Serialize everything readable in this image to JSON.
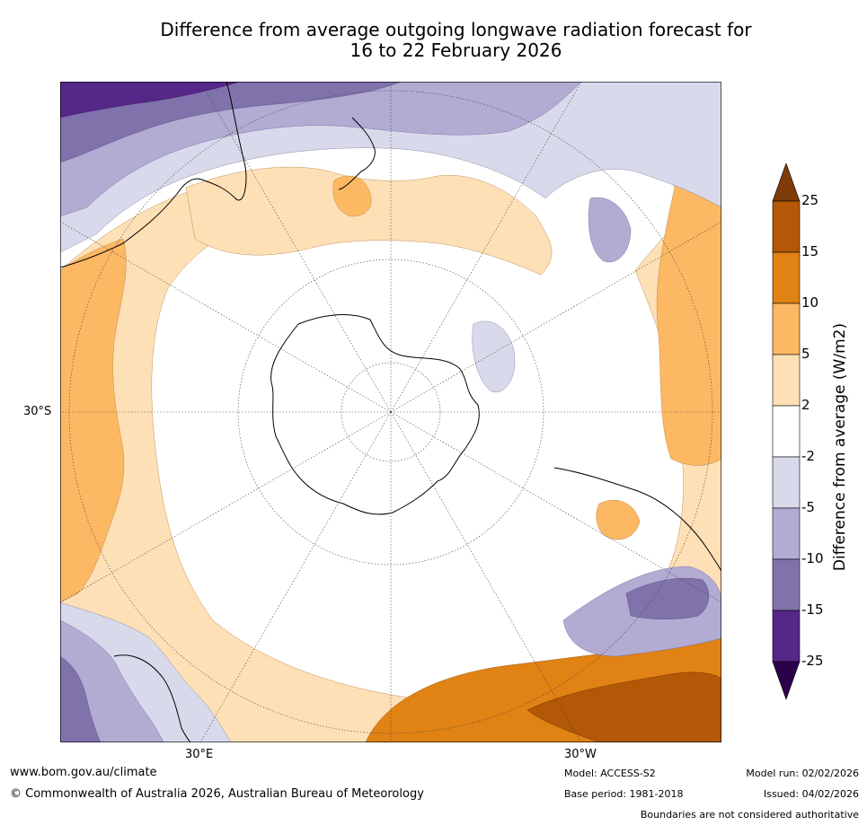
{
  "title_line1": "Difference from average outgoing longwave radiation forecast for",
  "title_line2": "16 to 22 February 2026",
  "map": {
    "lat_label": "30°S",
    "lon_label_left": "30°E",
    "lon_label_right": "30°W"
  },
  "colorbar": {
    "title": "Difference from average (W/m2)",
    "ticks": [
      "25",
      "15",
      "10",
      "5",
      "2",
      "-2",
      "-5",
      "-10",
      "-15",
      "-25"
    ],
    "colors": [
      "#7f3b08",
      "#b35806",
      "#e08214",
      "#fdb863",
      "#fee0b6",
      "#ffffff",
      "#d8daeb",
      "#b2abd2",
      "#8073ac",
      "#542788",
      "#2d004b"
    ]
  },
  "footer": {
    "website": "www.bom.gov.au/climate",
    "copyright": "© Commonwealth of Australia 2026, Australian Bureau of Meteorology",
    "model": "Model: ACCESS-S2",
    "base_period": "Base period: 1981-2018",
    "model_run": "Model run: 02/02/2026",
    "issued": "Issued: 04/02/2026",
    "boundaries": "Boundaries are not considered authoritative"
  }
}
